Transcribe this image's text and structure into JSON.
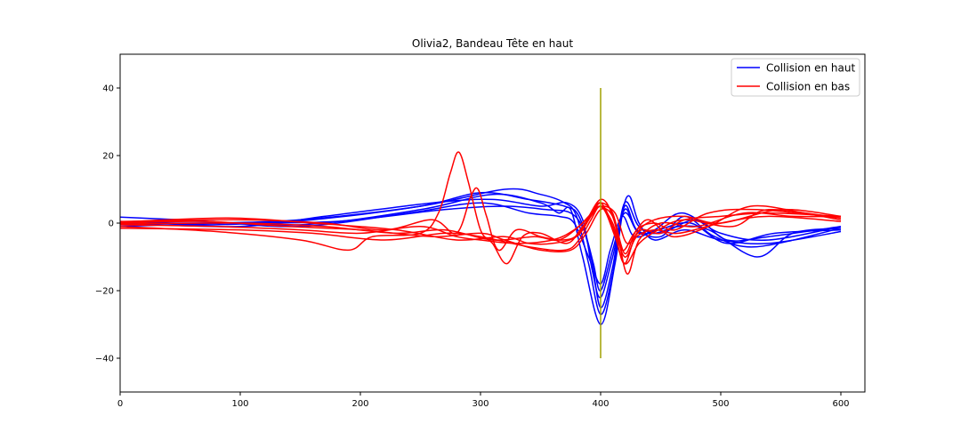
{
  "chart_data": {
    "type": "line",
    "title": "Olivia2, Bandeau Tête en haut",
    "xlabel": "",
    "ylabel": "",
    "xlim": [
      0,
      620
    ],
    "ylim": [
      -50,
      50
    ],
    "xticks": [
      0,
      100,
      200,
      300,
      400,
      500,
      600
    ],
    "yticks": [
      -40,
      -20,
      0,
      20,
      40
    ],
    "grid": false,
    "legend": {
      "placement": "top-right",
      "entries": [
        {
          "label": "Collision en haut",
          "color": "#0000ff"
        },
        {
          "label": "Collision en bas",
          "color": "#ff0000"
        }
      ]
    },
    "vertical_marker": {
      "x": 400,
      "y_from": -40,
      "y_to": 40,
      "color": "#a0a000"
    },
    "series": [
      {
        "group": "Collision en haut",
        "color": "#0000ff",
        "points": [
          [
            0,
            1.8
          ],
          [
            50,
            1.0
          ],
          [
            150,
            -0.5
          ],
          [
            250,
            4
          ],
          [
            310,
            8.5
          ],
          [
            350,
            6
          ],
          [
            365,
            3
          ],
          [
            375,
            4
          ],
          [
            385,
            -10
          ],
          [
            400,
            -30
          ],
          [
            412,
            -12
          ],
          [
            420,
            5
          ],
          [
            430,
            -2
          ],
          [
            445,
            -3
          ],
          [
            465,
            -1
          ],
          [
            490,
            -2
          ],
          [
            530,
            -10
          ],
          [
            560,
            -3
          ],
          [
            600,
            -1.5
          ]
        ]
      },
      {
        "group": "Collision en haut",
        "color": "#0000ff",
        "points": [
          [
            0,
            0.5
          ],
          [
            60,
            0
          ],
          [
            150,
            1
          ],
          [
            250,
            5
          ],
          [
            320,
            10
          ],
          [
            350,
            8.5
          ],
          [
            370,
            6
          ],
          [
            380,
            2
          ],
          [
            390,
            -12
          ],
          [
            400,
            -27
          ],
          [
            410,
            -15
          ],
          [
            418,
            3
          ],
          [
            424,
            8
          ],
          [
            432,
            0
          ],
          [
            445,
            -5
          ],
          [
            470,
            -2
          ],
          [
            500,
            -5
          ],
          [
            540,
            -6
          ],
          [
            600,
            -2.5
          ]
        ]
      },
      {
        "group": "Collision en haut",
        "color": "#0000ff",
        "points": [
          [
            0,
            -0.5
          ],
          [
            80,
            -0.5
          ],
          [
            160,
            1
          ],
          [
            250,
            5
          ],
          [
            300,
            9
          ],
          [
            340,
            7
          ],
          [
            370,
            5
          ],
          [
            382,
            2
          ],
          [
            392,
            -10
          ],
          [
            400,
            -25
          ],
          [
            410,
            -13
          ],
          [
            420,
            6
          ],
          [
            432,
            -1
          ],
          [
            450,
            -3
          ],
          [
            480,
            1
          ],
          [
            505,
            -5
          ],
          [
            540,
            -4
          ],
          [
            600,
            -1
          ]
        ]
      },
      {
        "group": "Collision en haut",
        "color": "#0000ff",
        "points": [
          [
            0,
            0
          ],
          [
            100,
            -1
          ],
          [
            170,
            2
          ],
          [
            260,
            6
          ],
          [
            310,
            7
          ],
          [
            350,
            5
          ],
          [
            372,
            6
          ],
          [
            385,
            1
          ],
          [
            393,
            -14
          ],
          [
            400,
            -22
          ],
          [
            410,
            -10
          ],
          [
            420,
            4
          ],
          [
            430,
            -2
          ],
          [
            450,
            -4
          ],
          [
            470,
            2
          ],
          [
            495,
            -4
          ],
          [
            530,
            -7
          ],
          [
            600,
            -1.5
          ]
        ]
      },
      {
        "group": "Collision en haut",
        "color": "#0000ff",
        "points": [
          [
            0,
            -1
          ],
          [
            90,
            0
          ],
          [
            180,
            0.5
          ],
          [
            270,
            4
          ],
          [
            320,
            5
          ],
          [
            355,
            4
          ],
          [
            375,
            3
          ],
          [
            386,
            -2
          ],
          [
            394,
            -12
          ],
          [
            400,
            -20
          ],
          [
            410,
            -8
          ],
          [
            420,
            3
          ],
          [
            432,
            -3
          ],
          [
            448,
            -2
          ],
          [
            475,
            0
          ],
          [
            505,
            -6
          ],
          [
            545,
            -3
          ],
          [
            600,
            -2
          ]
        ]
      },
      {
        "group": "Collision en haut",
        "color": "#0000ff",
        "points": [
          [
            0,
            0.2
          ],
          [
            70,
            0.5
          ],
          [
            150,
            -1
          ],
          [
            240,
            3
          ],
          [
            300,
            6
          ],
          [
            340,
            3
          ],
          [
            365,
            2
          ],
          [
            378,
            0
          ],
          [
            390,
            -10
          ],
          [
            400,
            -18
          ],
          [
            408,
            -8
          ],
          [
            418,
            2
          ],
          [
            428,
            -4
          ],
          [
            445,
            -2
          ],
          [
            468,
            3
          ],
          [
            500,
            -3
          ],
          [
            540,
            -5
          ],
          [
            600,
            -1
          ]
        ]
      },
      {
        "group": "Collision en bas",
        "color": "#ff0000",
        "points": [
          [
            0,
            -1
          ],
          [
            80,
            -2.5
          ],
          [
            150,
            -5
          ],
          [
            190,
            -8
          ],
          [
            210,
            -4
          ],
          [
            250,
            -3
          ],
          [
            265,
            3
          ],
          [
            275,
            15
          ],
          [
            282,
            21
          ],
          [
            290,
            12
          ],
          [
            300,
            -2
          ],
          [
            310,
            -6
          ],
          [
            322,
            -12
          ],
          [
            335,
            -4
          ],
          [
            350,
            -3
          ],
          [
            372,
            -6
          ],
          [
            385,
            -1
          ],
          [
            400,
            5
          ],
          [
            412,
            -4
          ],
          [
            420,
            -12
          ],
          [
            430,
            -3
          ],
          [
            445,
            1
          ],
          [
            470,
            2
          ],
          [
            500,
            0
          ],
          [
            550,
            4
          ],
          [
            600,
            2
          ]
        ]
      },
      {
        "group": "Collision en bas",
        "color": "#ff0000",
        "points": [
          [
            0,
            0.5
          ],
          [
            100,
            1
          ],
          [
            170,
            0
          ],
          [
            220,
            -2
          ],
          [
            260,
            1
          ],
          [
            280,
            -3
          ],
          [
            292,
            8
          ],
          [
            298,
            10
          ],
          [
            305,
            2
          ],
          [
            315,
            -8
          ],
          [
            330,
            -2
          ],
          [
            350,
            -4
          ],
          [
            368,
            -5
          ],
          [
            382,
            -3
          ],
          [
            400,
            7
          ],
          [
            412,
            0
          ],
          [
            422,
            -15
          ],
          [
            432,
            -5
          ],
          [
            450,
            0
          ],
          [
            480,
            -1
          ],
          [
            520,
            3
          ],
          [
            560,
            2
          ],
          [
            600,
            2
          ]
        ]
      },
      {
        "group": "Collision en bas",
        "color": "#ff0000",
        "points": [
          [
            0,
            -0.5
          ],
          [
            80,
            -1
          ],
          [
            150,
            -2
          ],
          [
            200,
            -3
          ],
          [
            250,
            -1
          ],
          [
            280,
            -4
          ],
          [
            300,
            -5
          ],
          [
            330,
            -6
          ],
          [
            360,
            -5
          ],
          [
            378,
            -2
          ],
          [
            390,
            2
          ],
          [
            400,
            6
          ],
          [
            410,
            -1
          ],
          [
            420,
            -12
          ],
          [
            432,
            -6
          ],
          [
            448,
            -2
          ],
          [
            470,
            1
          ],
          [
            510,
            -1
          ],
          [
            540,
            4
          ],
          [
            600,
            1
          ]
        ]
      },
      {
        "group": "Collision en bas",
        "color": "#ff0000",
        "points": [
          [
            0,
            -1.5
          ],
          [
            100,
            -2
          ],
          [
            160,
            -3
          ],
          [
            220,
            -5
          ],
          [
            270,
            -3
          ],
          [
            300,
            -4
          ],
          [
            340,
            -7
          ],
          [
            370,
            -8
          ],
          [
            382,
            -5
          ],
          [
            392,
            1
          ],
          [
            400,
            5
          ],
          [
            410,
            0
          ],
          [
            420,
            -10
          ],
          [
            430,
            -4
          ],
          [
            445,
            -2
          ],
          [
            465,
            -3
          ],
          [
            500,
            0
          ],
          [
            540,
            2
          ],
          [
            600,
            0.5
          ]
        ]
      },
      {
        "group": "Collision en bas",
        "color": "#ff0000",
        "points": [
          [
            0,
            0
          ],
          [
            70,
            0.5
          ],
          [
            140,
            -1
          ],
          [
            200,
            -2
          ],
          [
            260,
            -4
          ],
          [
            300,
            -3
          ],
          [
            320,
            -5
          ],
          [
            350,
            -8
          ],
          [
            375,
            -8
          ],
          [
            388,
            -3
          ],
          [
            400,
            4
          ],
          [
            410,
            2
          ],
          [
            418,
            -8
          ],
          [
            428,
            -3
          ],
          [
            440,
            1
          ],
          [
            460,
            -4
          ],
          [
            490,
            -1
          ],
          [
            525,
            5
          ],
          [
            570,
            3
          ],
          [
            600,
            1.5
          ]
        ]
      },
      {
        "group": "Collision en bas",
        "color": "#ff0000",
        "points": [
          [
            0,
            0.3
          ],
          [
            90,
            1.5
          ],
          [
            160,
            0
          ],
          [
            230,
            -2
          ],
          [
            280,
            -5
          ],
          [
            320,
            -4
          ],
          [
            340,
            -6
          ],
          [
            360,
            -6
          ],
          [
            380,
            -4
          ],
          [
            392,
            2
          ],
          [
            400,
            5
          ],
          [
            412,
            3
          ],
          [
            422,
            -6
          ],
          [
            434,
            -2
          ],
          [
            450,
            -3
          ],
          [
            470,
            1
          ],
          [
            500,
            2
          ],
          [
            540,
            3
          ],
          [
            600,
            2
          ]
        ]
      },
      {
        "group": "Collision en bas",
        "color": "#ff0000",
        "points": [
          [
            0,
            -0.3
          ],
          [
            100,
            0
          ],
          [
            170,
            -1
          ],
          [
            230,
            -3
          ],
          [
            270,
            -2
          ],
          [
            310,
            -5
          ],
          [
            345,
            -4
          ],
          [
            365,
            -5
          ],
          [
            382,
            -1
          ],
          [
            393,
            3
          ],
          [
            400,
            6
          ],
          [
            410,
            3
          ],
          [
            420,
            -9
          ],
          [
            430,
            -2
          ],
          [
            445,
            0
          ],
          [
            462,
            -2
          ],
          [
            490,
            3
          ],
          [
            530,
            4
          ],
          [
            600,
            1.5
          ]
        ]
      }
    ]
  }
}
